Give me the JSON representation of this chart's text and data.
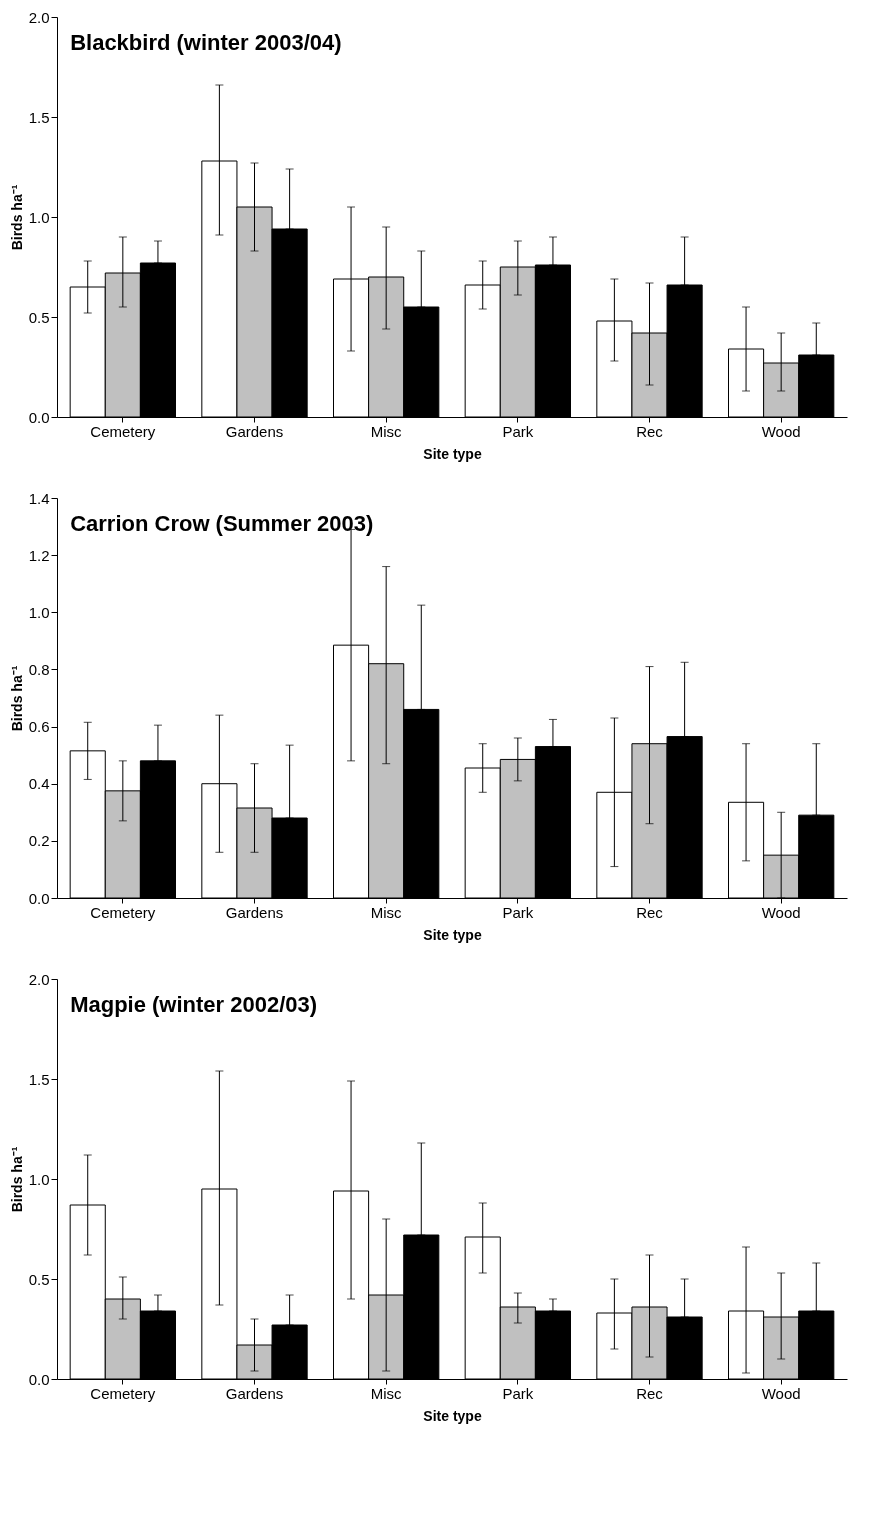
{
  "chart_data": [
    {
      "type": "bar",
      "title": "Blackbird (winter 2003/04)",
      "xlabel": "Site type",
      "ylabel": "Birds ha⁻¹",
      "categories": [
        "Cemetery",
        "Gardens",
        "Misc",
        "Park",
        "Rec",
        "Wood"
      ],
      "ylim": [
        0,
        2
      ],
      "yticks": [
        {
          "value": 0,
          "label": "0.0"
        },
        0.5,
        {
          "value": 1,
          "label": "1.0"
        },
        1.5,
        {
          "value": 2,
          "label": "2.0"
        }
      ],
      "series": [
        {
          "color": "#ffffff",
          "values": [
            0.65,
            1.28,
            0.69,
            0.66,
            0.48,
            0.34
          ],
          "errors": [
            [
              0.52,
              0.78
            ],
            [
              0.91,
              1.66
            ],
            [
              0.33,
              1.05
            ],
            [
              0.54,
              0.78
            ],
            [
              0.28,
              0.69
            ],
            [
              0.13,
              0.55
            ]
          ]
        },
        {
          "color": "#c0c0c0",
          "values": [
            0.72,
            1.05,
            0.7,
            0.75,
            0.42,
            0.27
          ],
          "errors": [
            [
              0.55,
              0.9
            ],
            [
              0.83,
              1.27
            ],
            [
              0.44,
              0.95
            ],
            [
              0.61,
              0.88
            ],
            [
              0.16,
              0.67
            ],
            [
              0.13,
              0.42
            ]
          ]
        },
        {
          "color": "#000000",
          "values": [
            0.77,
            0.94,
            0.55,
            0.76,
            0.66,
            0.31
          ],
          "errors": [
            [
              0.77,
              0.88
            ],
            [
              0.94,
              1.24
            ],
            [
              0.55,
              0.83
            ],
            [
              0.76,
              0.9
            ],
            [
              0.66,
              0.9
            ],
            [
              0.31,
              0.47
            ]
          ]
        }
      ]
    },
    {
      "type": "bar",
      "title": "Carrion Crow (Summer 2003)",
      "xlabel": "Site type",
      "ylabel": "Birds ha⁻¹",
      "categories": [
        "Cemetery",
        "Gardens",
        "Misc",
        "Park",
        "Rec",
        "Wood"
      ],
      "ylim": [
        0,
        1.4
      ],
      "yticks": [
        {
          "value": 0,
          "label": "0.0"
        },
        0.2,
        0.4,
        0.6,
        0.8,
        {
          "value": 1,
          "label": "1.0"
        },
        1.2,
        1.4
      ],
      "series": [
        {
          "color": "#ffffff",
          "values": [
            0.515,
            0.4,
            0.885,
            0.455,
            0.37,
            0.335
          ],
          "errors": [
            [
              0.415,
              0.615
            ],
            [
              0.16,
              0.64
            ],
            [
              0.48,
              1.29
            ],
            [
              0.37,
              0.54
            ],
            [
              0.11,
              0.63
            ],
            [
              0.13,
              0.54
            ]
          ]
        },
        {
          "color": "#c0c0c0",
          "values": [
            0.375,
            0.315,
            0.82,
            0.485,
            0.54,
            0.15
          ],
          "errors": [
            [
              0.27,
              0.48
            ],
            [
              0.16,
              0.47
            ],
            [
              0.47,
              1.16
            ],
            [
              0.41,
              0.56
            ],
            [
              0.26,
              0.81
            ],
            [
              0.0,
              0.3
            ]
          ]
        },
        {
          "color": "#000000",
          "values": [
            0.48,
            0.28,
            0.66,
            0.53,
            0.565,
            0.29
          ],
          "errors": [
            [
              0.48,
              0.605
            ],
            [
              0.28,
              0.535
            ],
            [
              0.66,
              1.025
            ],
            [
              0.53,
              0.625
            ],
            [
              0.565,
              0.825
            ],
            [
              0.29,
              0.54
            ]
          ]
        }
      ]
    },
    {
      "type": "bar",
      "title": "Magpie (winter 2002/03)",
      "xlabel": "Site type",
      "ylabel": "Birds ha⁻¹",
      "categories": [
        "Cemetery",
        "Gardens",
        "Misc",
        "Park",
        "Rec",
        "Wood"
      ],
      "ylim": [
        0,
        2
      ],
      "yticks": [
        {
          "value": 0,
          "label": "0.0"
        },
        0.5,
        {
          "value": 1,
          "label": "1.0"
        },
        1.5,
        {
          "value": 2,
          "label": "2.0"
        }
      ],
      "series": [
        {
          "color": "#ffffff",
          "values": [
            0.87,
            0.95,
            0.94,
            0.71,
            0.33,
            0.34
          ],
          "errors": [
            [
              0.62,
              1.12
            ],
            [
              0.37,
              1.54
            ],
            [
              0.4,
              1.49
            ],
            [
              0.53,
              0.88
            ],
            [
              0.15,
              0.5
            ],
            [
              0.03,
              0.66
            ]
          ]
        },
        {
          "color": "#c0c0c0",
          "values": [
            0.4,
            0.17,
            0.42,
            0.36,
            0.36,
            0.31
          ],
          "errors": [
            [
              0.3,
              0.51
            ],
            [
              0.04,
              0.3
            ],
            [
              0.04,
              0.8
            ],
            [
              0.28,
              0.43
            ],
            [
              0.11,
              0.62
            ],
            [
              0.1,
              0.53
            ]
          ]
        },
        {
          "color": "#000000",
          "values": [
            0.34,
            0.27,
            0.72,
            0.34,
            0.31,
            0.34
          ],
          "errors": [
            [
              0.34,
              0.42
            ],
            [
              0.27,
              0.42
            ],
            [
              0.72,
              1.18
            ],
            [
              0.34,
              0.4
            ],
            [
              0.31,
              0.5
            ],
            [
              0.34,
              0.58
            ]
          ]
        }
      ]
    }
  ]
}
